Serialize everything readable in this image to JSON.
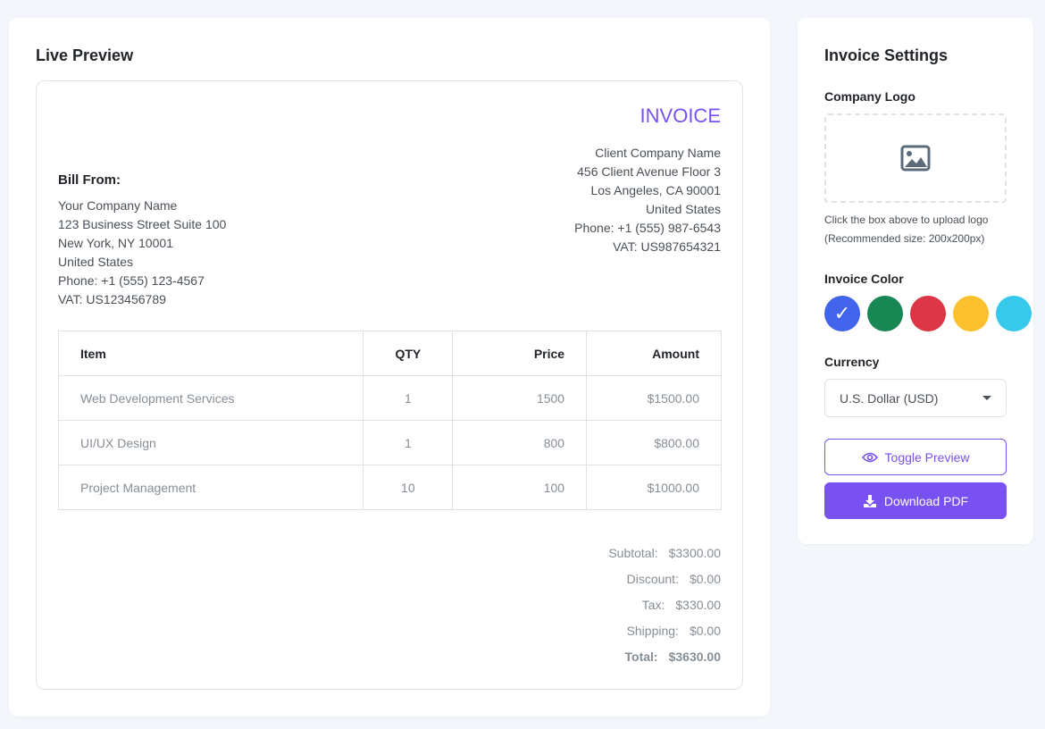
{
  "preview": {
    "title": "Live Preview",
    "invoice_title": "INVOICE",
    "bill_from": {
      "label": "Bill From:",
      "lines": [
        "Your Company Name",
        "123 Business Street Suite 100",
        "New York, NY 10001",
        "United States",
        "Phone: +1 (555) 123-4567",
        "VAT: US123456789"
      ]
    },
    "bill_to": {
      "lines": [
        "Client Company Name",
        "456 Client Avenue Floor 3",
        "Los Angeles, CA 90001",
        "United States",
        "Phone: +1 (555) 987-6543",
        "VAT: US987654321"
      ]
    },
    "table": {
      "headers": [
        "Item",
        "QTY",
        "Price",
        "Amount"
      ],
      "rows": [
        [
          "Web Development Services",
          "1",
          "1500",
          "$1500.00"
        ],
        [
          "UI/UX Design",
          "1",
          "800",
          "$800.00"
        ],
        [
          "Project Management",
          "10",
          "100",
          "$1000.00"
        ]
      ]
    },
    "totals": [
      {
        "label": "Subtotal:",
        "value": "$3300.00"
      },
      {
        "label": "Discount:",
        "value": "$0.00"
      },
      {
        "label": "Tax:",
        "value": "$330.00"
      },
      {
        "label": "Shipping:",
        "value": "$0.00"
      },
      {
        "label": "Total:",
        "value": "$3630.00"
      }
    ]
  },
  "settings": {
    "title": "Invoice Settings",
    "logo_label": "Company Logo",
    "logo_icon": "image-icon",
    "hint": [
      "Click the box above to upload logo",
      "(Recommended size: 200x200px)"
    ],
    "color_label": "Invoice Color",
    "colors": [
      "#4263eb",
      "#198754",
      "#dc3545",
      "#fbc02d",
      "#36c9ec"
    ],
    "selected_color": 0,
    "check": "✓",
    "currency_label": "Currency",
    "currency_value": "U.S. Dollar (USD)",
    "toggle_label": "Toggle Preview",
    "download_label": "Download PDF",
    "accent": "#7950f2"
  }
}
